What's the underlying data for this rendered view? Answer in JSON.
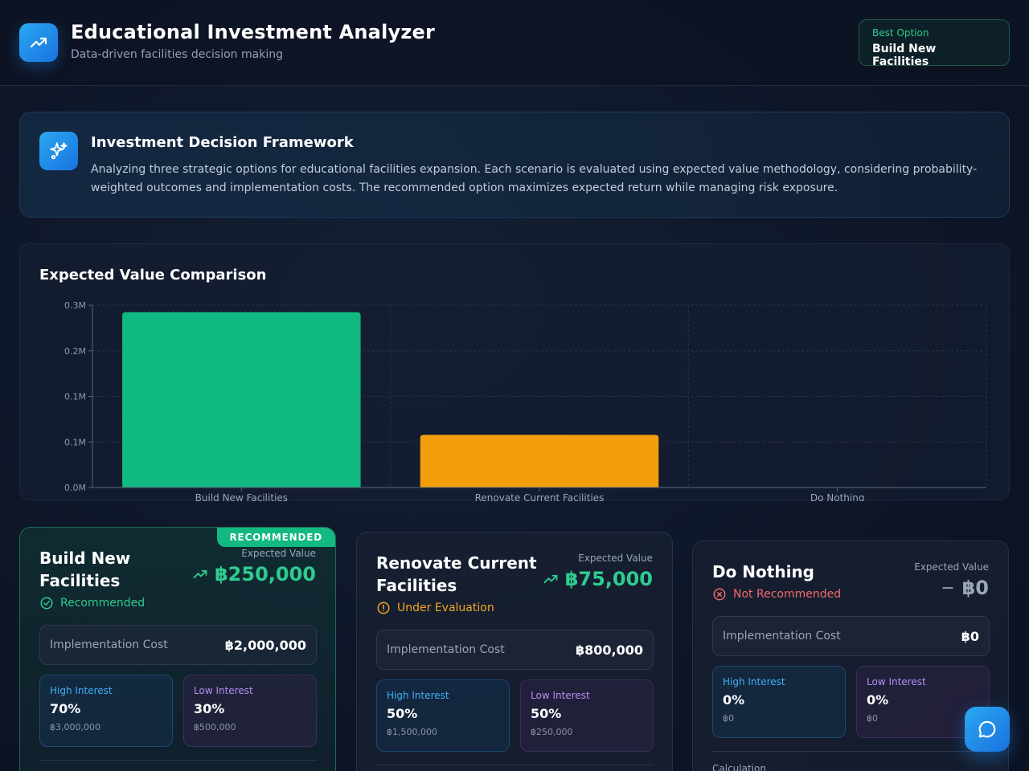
{
  "header": {
    "title": "Educational Investment Analyzer",
    "subtitle": "Data-driven facilities decision making",
    "best_option_label": "Best Option",
    "best_option_value": "Build New Facilities"
  },
  "framework": {
    "title": "Investment Decision Framework",
    "text": "Analyzing three strategic options for educational facilities expansion. Each scenario is evaluated using expected value methodology, considering probability-weighted outcomes and implementation costs. The recommended option maximizes expected return while managing risk exposure."
  },
  "chart_section": {
    "title": "Expected Value Comparison"
  },
  "chart_data": {
    "type": "bar",
    "categories": [
      "Build New Facilities",
      "Renovate Current Facilities",
      "Do Nothing"
    ],
    "values": [
      250000,
      75000,
      0
    ],
    "colors": [
      "#10b981",
      "#f59e0b",
      "#64748b"
    ],
    "y_ticks": [
      "0.0M",
      "0.1M",
      "0.1M",
      "0.2M",
      "0.3M"
    ],
    "ylim": [
      0,
      260000
    ],
    "grid": true,
    "xlabel": "",
    "ylabel": ""
  },
  "options": [
    {
      "badge": "RECOMMENDED",
      "title_line1": "Build New",
      "title_line2": "Facilities",
      "ev_label": "Expected Value",
      "ev_value": "฿250,000",
      "status": "Recommended",
      "status_color": "#2ecc8f",
      "impl_label": "Implementation Cost",
      "impl_value": "฿2,000,000",
      "high_label": "High Interest",
      "high_pct": "70%",
      "high_amt": "฿3,000,000",
      "low_label": "Low Interest",
      "low_pct": "30%",
      "low_amt": "฿500,000"
    },
    {
      "title_line1": "Renovate Current",
      "title_line2": "Facilities",
      "ev_label": "Expected Value",
      "ev_value": "฿75,000",
      "status": "Under Evaluation",
      "status_color": "#f5a524",
      "impl_label": "Implementation Cost",
      "impl_value": "฿800,000",
      "high_label": "High Interest",
      "high_pct": "50%",
      "high_amt": "฿1,500,000",
      "low_label": "Low Interest",
      "low_pct": "50%",
      "low_amt": "฿250,000"
    },
    {
      "title_line1": "Do Nothing",
      "ev_label": "Expected Value",
      "ev_value": "฿0",
      "status": "Not Recommended",
      "status_color": "#f26b6b",
      "impl_label": "Implementation Cost",
      "impl_value": "฿0",
      "high_label": "High Interest",
      "high_pct": "0%",
      "high_amt": "฿0",
      "low_label": "Low Interest",
      "low_pct": "0%",
      "low_amt": "฿0",
      "calc_label": "Calculation"
    }
  ],
  "icons": {
    "logo": "trending-up-icon",
    "framework": "sparkles-icon",
    "chat": "chat-bubble-icon"
  }
}
